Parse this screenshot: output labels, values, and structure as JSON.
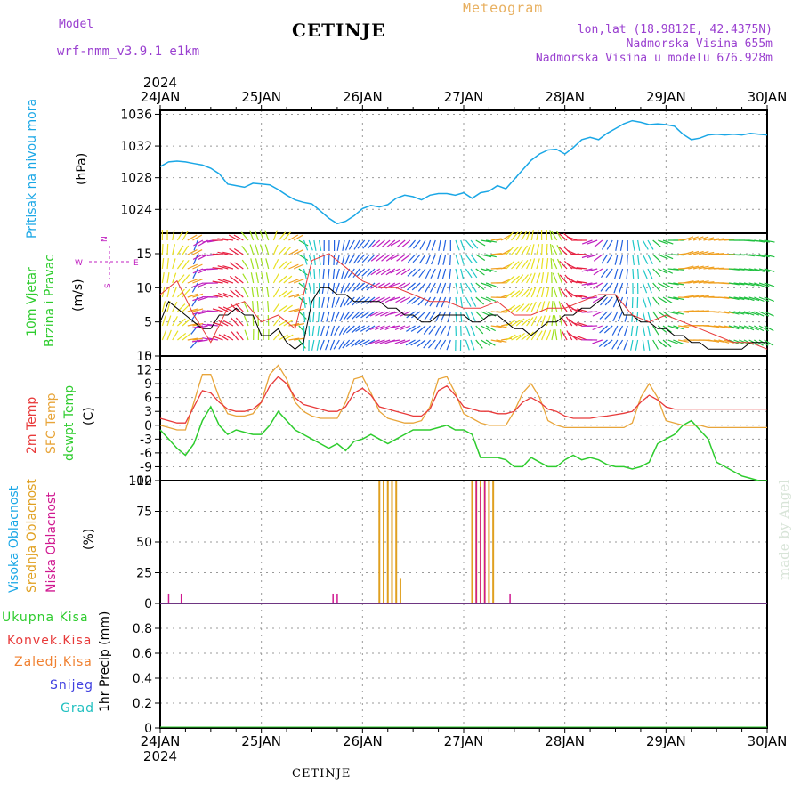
{
  "header": {
    "model_label": "Model",
    "model_name": "wrf-nmm_v3.9.1 e1km",
    "station": "CETINJE",
    "product": "Meteogram",
    "coords": "lon,lat (18.9812E, 42.4375N)",
    "altitude": "Nadmorska Visina 655m",
    "model_altitude": "Nadmorska Visina u modelu 676.928m",
    "footer_station": "CETINJE",
    "watermark": "made by Angel"
  },
  "time_axis": {
    "year_label": "2024",
    "ticks": [
      "24JAN",
      "25JAN",
      "26JAN",
      "27JAN",
      "28JAN",
      "29JAN",
      "30JAN"
    ],
    "range_hours": [
      0,
      144
    ]
  },
  "colors": {
    "pressure": "#1aa7e6",
    "temp2m": "#e83a3a",
    "sfc": "#e8a53a",
    "dewpt": "#2ecc2e",
    "high_cloud": "#1aa7e6",
    "mid_cloud": "#e0a020",
    "low_cloud": "#d01890",
    "wind_magenta": "#c020c0",
    "total_precip": "#2ecc2e",
    "conv_precip": "#e83a3a",
    "frz_precip": "#f08030",
    "snow": "#4040e0",
    "hail": "#20c0c0",
    "gust": "#e83a3a"
  },
  "chart_data": [
    {
      "type": "line",
      "panel": "pressure",
      "ylabel_title": "Pritisak na nivou mora",
      "ylabel_unit": "(hPa)",
      "ylim": [
        1021,
        1036.5
      ],
      "yticks": [
        "1024",
        "1028",
        "1032",
        "1036"
      ],
      "ytick_values": [
        1024,
        1028,
        1032,
        1036
      ],
      "series": [
        {
          "name": "Pritisak na nivou mora",
          "x": [
            0,
            2,
            4,
            6,
            8,
            10,
            12,
            14,
            16,
            18,
            20,
            22,
            24,
            26,
            28,
            30,
            32,
            34,
            36,
            38,
            40,
            42,
            44,
            46,
            48,
            50,
            52,
            54,
            56,
            58,
            60,
            62,
            64,
            66,
            68,
            70,
            72,
            74,
            76,
            78,
            80,
            82,
            84,
            86,
            88,
            90,
            92,
            94,
            96,
            98,
            100,
            102,
            104,
            106,
            108,
            110,
            112,
            114,
            116,
            118,
            120,
            122,
            124,
            126,
            128,
            130,
            132,
            134,
            136,
            138,
            140,
            142,
            144
          ],
          "values": [
            1029.4,
            1030.0,
            1030.1,
            1030.0,
            1029.8,
            1029.6,
            1029.2,
            1028.5,
            1027.2,
            1027.0,
            1026.8,
            1027.3,
            1027.2,
            1027.1,
            1026.5,
            1025.8,
            1025.2,
            1024.9,
            1024.7,
            1023.8,
            1022.9,
            1022.2,
            1022.5,
            1023.2,
            1024.1,
            1024.5,
            1024.3,
            1024.6,
            1025.4,
            1025.8,
            1025.6,
            1025.2,
            1025.8,
            1026.0,
            1026.0,
            1025.8,
            1026.1,
            1025.4,
            1026.1,
            1026.3,
            1027.0,
            1026.6,
            1027.8,
            1029.0,
            1030.2,
            1031.0,
            1031.5,
            1031.6,
            1031.0,
            1031.8,
            1032.8,
            1033.1,
            1032.8,
            1033.6,
            1034.2,
            1034.8,
            1035.2,
            1035.0,
            1034.7,
            1034.8,
            1034.7,
            1034.5,
            1033.5,
            1032.8,
            1033.0,
            1033.4,
            1033.5,
            1033.4,
            1033.5,
            1033.4,
            1033.6,
            1033.5,
            1033.4
          ]
        }
      ]
    },
    {
      "type": "line",
      "panel": "wind",
      "ylabel_title_1": "10m Vjetar",
      "ylabel_title_2": "Brzina i Pravac",
      "ylabel_unit": "(m/s)",
      "compass_n": "N",
      "compass_w": "W",
      "compass_e": "E",
      "compass_s": "S",
      "ylim": [
        0,
        18
      ],
      "yticks": [
        "0",
        "5",
        "10",
        "15"
      ],
      "ytick_values": [
        0,
        5,
        10,
        15
      ],
      "series": [
        {
          "name": "speed",
          "x": [
            0,
            2,
            4,
            6,
            8,
            10,
            12,
            14,
            16,
            18,
            20,
            22,
            24,
            26,
            28,
            30,
            32,
            34,
            36,
            38,
            40,
            42,
            44,
            46,
            48,
            50,
            52,
            54,
            56,
            58,
            60,
            62,
            64,
            66,
            68,
            70,
            72,
            74,
            76,
            78,
            80,
            82,
            84,
            86,
            88,
            90,
            92,
            94,
            96,
            98,
            100,
            102,
            104,
            106,
            108,
            110,
            112,
            114,
            116,
            118,
            120,
            122,
            124,
            126,
            128,
            130,
            132,
            134,
            136,
            138,
            140,
            142,
            144
          ],
          "values": [
            5,
            8,
            7,
            6,
            5,
            4,
            4,
            6,
            6,
            7,
            6,
            6,
            3,
            3,
            4,
            2,
            1,
            2,
            8,
            10,
            10,
            9,
            9,
            8,
            8,
            8,
            8,
            7,
            7,
            6,
            6,
            5,
            5,
            6,
            6,
            6,
            6,
            5,
            5,
            6,
            6,
            5,
            4,
            4,
            3,
            4,
            5,
            5,
            6,
            6,
            7,
            7,
            8,
            9,
            9,
            6,
            6,
            5,
            5,
            4,
            4,
            3,
            3,
            2,
            2,
            1,
            1,
            1,
            1,
            1,
            2,
            2,
            2
          ],
          "dir_deg": [
            0,
            10,
            30,
            60,
            200,
            240,
            260,
            270,
            280,
            300,
            320,
            340,
            340,
            20,
            40,
            60,
            120,
            160,
            170,
            180,
            180,
            190,
            200,
            210,
            220,
            220,
            230,
            230,
            240,
            230,
            220,
            210,
            200,
            190,
            180,
            160,
            140,
            120,
            100,
            80,
            60,
            40,
            30,
            20,
            10,
            0,
            350,
            330,
            310,
            290,
            270,
            250,
            230,
            210,
            190,
            180,
            170,
            150,
            130,
            110,
            90,
            80,
            70,
            70,
            75,
            80,
            85,
            90,
            90,
            95,
            100,
            100,
            100
          ]
        },
        {
          "name": "gust",
          "x": [
            0,
            4,
            8,
            12,
            16,
            20,
            24,
            28,
            32,
            36,
            40,
            44,
            48,
            52,
            56,
            60,
            64,
            68,
            72,
            76,
            80,
            84,
            88,
            92,
            96,
            100,
            104,
            108,
            112,
            116,
            120,
            124,
            128,
            132,
            136,
            140,
            144
          ],
          "values": [
            9,
            11,
            6,
            2,
            7,
            8,
            5,
            6,
            4,
            14,
            15,
            13,
            11,
            10,
            10,
            9,
            8,
            8,
            7,
            7,
            8,
            6,
            6,
            7,
            7,
            8,
            9,
            9,
            6,
            5,
            6,
            5,
            4,
            3,
            2,
            2,
            1
          ]
        }
      ]
    },
    {
      "type": "line",
      "panel": "temperature",
      "ylabel_2m": "2m Temp",
      "ylabel_sfc": "SFC Temp",
      "ylabel_dew": "dewpt Temp",
      "ylabel_unit": "(C)",
      "ylim": [
        -12,
        15
      ],
      "yticks": [
        "-12",
        "-9",
        "-6",
        "-3",
        "0",
        "3",
        "6",
        "9",
        "12",
        "15"
      ],
      "ytick_values": [
        -12,
        -9,
        -6,
        -3,
        0,
        3,
        6,
        9,
        12,
        15
      ],
      "series": [
        {
          "name": "2m Temp",
          "x": [
            0,
            2,
            4,
            6,
            8,
            10,
            12,
            14,
            16,
            18,
            20,
            22,
            24,
            26,
            28,
            30,
            32,
            34,
            36,
            38,
            40,
            42,
            44,
            46,
            48,
            50,
            52,
            54,
            56,
            58,
            60,
            62,
            64,
            66,
            68,
            70,
            72,
            74,
            76,
            78,
            80,
            82,
            84,
            86,
            88,
            90,
            92,
            94,
            96,
            98,
            100,
            102,
            104,
            106,
            108,
            110,
            112,
            114,
            116,
            118,
            120,
            122,
            124,
            126,
            128,
            130,
            132,
            134,
            136,
            138,
            140,
            142,
            144
          ],
          "values": [
            1.5,
            1.0,
            0.5,
            0.5,
            4.0,
            7.5,
            7.0,
            5.0,
            3.5,
            3.0,
            3.0,
            3.5,
            5.0,
            8.5,
            10.5,
            9.0,
            6.0,
            4.5,
            4.0,
            3.5,
            3.0,
            3.0,
            4.0,
            7.0,
            8.0,
            6.5,
            4.0,
            3.5,
            3.0,
            2.5,
            2.0,
            2.0,
            3.5,
            7.5,
            8.5,
            6.5,
            4.0,
            3.5,
            3.0,
            3.0,
            2.5,
            2.5,
            3.0,
            5.0,
            6.0,
            5.0,
            3.5,
            3.0,
            2.0,
            1.5,
            1.5,
            1.5,
            1.8,
            2.0,
            2.3,
            2.6,
            3.0,
            5.0,
            6.5,
            5.5,
            4.0,
            3.5,
            3.5,
            3.5,
            3.5,
            3.5,
            3.5,
            3.5,
            3.5,
            3.5,
            3.5,
            3.5,
            3.5
          ]
        },
        {
          "name": "SFC Temp",
          "x": [
            0,
            2,
            4,
            6,
            8,
            10,
            12,
            14,
            16,
            18,
            20,
            22,
            24,
            26,
            28,
            30,
            32,
            34,
            36,
            38,
            40,
            42,
            44,
            46,
            48,
            50,
            52,
            54,
            56,
            58,
            60,
            62,
            64,
            66,
            68,
            70,
            72,
            74,
            76,
            78,
            80,
            82,
            84,
            86,
            88,
            90,
            92,
            94,
            96,
            98,
            100,
            102,
            104,
            106,
            108,
            110,
            112,
            114,
            116,
            118,
            120,
            122,
            124,
            126,
            128,
            130,
            132,
            134,
            136,
            138,
            140,
            142,
            144
          ],
          "values": [
            0,
            -0.5,
            -1,
            -1,
            5,
            11,
            11,
            6,
            2.5,
            2,
            2,
            2.5,
            5,
            11,
            13,
            10,
            5,
            3,
            2,
            1.5,
            1.5,
            1.5,
            5,
            10,
            10.5,
            7,
            3,
            1.5,
            1,
            0.5,
            0.5,
            1,
            4,
            10,
            10.5,
            7,
            2.5,
            1.5,
            0.5,
            0,
            0,
            0,
            3,
            7,
            9,
            6,
            1,
            0,
            -0.5,
            -0.5,
            -0.5,
            -0.5,
            -0.5,
            -0.5,
            -0.5,
            -0.5,
            0.5,
            6,
            9,
            6,
            1,
            0.5,
            0,
            0,
            0,
            -0.5,
            -0.5,
            -0.5,
            -0.5,
            -0.5,
            -0.5,
            -0.5,
            -0.5
          ]
        },
        {
          "name": "dewpt Temp",
          "x": [
            0,
            2,
            4,
            6,
            8,
            10,
            12,
            14,
            16,
            18,
            20,
            22,
            24,
            26,
            28,
            30,
            32,
            34,
            36,
            38,
            40,
            42,
            44,
            46,
            48,
            50,
            52,
            54,
            56,
            58,
            60,
            62,
            64,
            66,
            68,
            70,
            72,
            74,
            76,
            78,
            80,
            82,
            84,
            86,
            88,
            90,
            92,
            94,
            96,
            98,
            100,
            102,
            104,
            106,
            108,
            110,
            112,
            114,
            116,
            118,
            120,
            122,
            124,
            126,
            128,
            130,
            132,
            134,
            136,
            138,
            140,
            142,
            144
          ],
          "values": [
            -1,
            -3,
            -5,
            -6.5,
            -4,
            1,
            4,
            0,
            -2,
            -1,
            -1.5,
            -2,
            -2,
            0,
            3,
            1,
            -1,
            -2,
            -3,
            -4,
            -5,
            -4,
            -5.5,
            -3.5,
            -3,
            -2,
            -3,
            -4,
            -3,
            -2,
            -1,
            -1,
            -1,
            -0.5,
            0,
            -1,
            -1,
            -2,
            -7,
            -7,
            -7,
            -7.5,
            -9,
            -9,
            -7,
            -8,
            -9,
            -9,
            -7.5,
            -6.5,
            -7.5,
            -7,
            -7.5,
            -8.5,
            -9,
            -9,
            -9.5,
            -9,
            -8,
            -4,
            -3,
            -2,
            0,
            1,
            -1,
            -3,
            -8,
            -9,
            -10,
            -11,
            -11.5,
            -12,
            -12
          ]
        }
      ]
    },
    {
      "type": "bar",
      "panel": "clouds",
      "ylabel_high": "Visoka Oblacnost",
      "ylabel_mid": "Srednja Oblacnost",
      "ylabel_low": "Niska Oblacnost",
      "ylabel_unit": "(%)",
      "ylim": [
        0,
        100
      ],
      "yticks": [
        "0",
        "25",
        "50",
        "75",
        "100"
      ],
      "ytick_values": [
        0,
        25,
        50,
        75,
        100
      ],
      "series": [
        {
          "name": "Srednja Oblacnost",
          "x": [
            52,
            53,
            54,
            55,
            56,
            57,
            74,
            75,
            76,
            77,
            78,
            79
          ],
          "values": [
            100,
            100,
            100,
            100,
            100,
            20,
            100,
            100,
            100,
            100,
            100,
            100
          ]
        },
        {
          "name": "Niska Oblacnost",
          "x": [
            2,
            5,
            41,
            42,
            75,
            76,
            77,
            83
          ],
          "values": [
            8,
            8,
            8,
            8,
            100,
            95,
            100,
            8
          ]
        }
      ]
    },
    {
      "type": "line",
      "panel": "precip",
      "ylabel_total": "Ukupna Kisa",
      "ylabel_conv": "Konvek.Kisa",
      "ylabel_frz": "Zaledj.Kisa",
      "ylabel_snow": "Snijeg",
      "ylabel_hail": "Grad",
      "ylabel_unit": "1hr Precip (mm)",
      "ylim": [
        0,
        1
      ],
      "yticks": [
        "0",
        "0.2",
        "0.4",
        "0.6",
        "0.8"
      ],
      "ytick_values": [
        0,
        0.2,
        0.4,
        0.6,
        0.8
      ],
      "series": [
        {
          "name": "Ukupna Kisa",
          "x": [
            0,
            144
          ],
          "values": [
            0,
            0
          ]
        }
      ]
    }
  ]
}
